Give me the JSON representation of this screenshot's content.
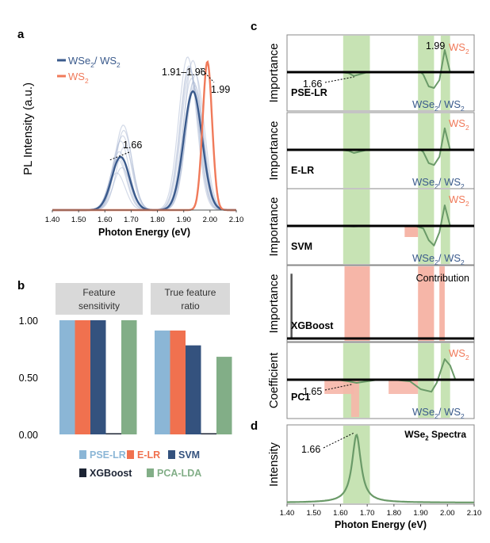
{
  "panel_labels": {
    "a": "a",
    "b": "b",
    "c": "c",
    "d": "d"
  },
  "colors": {
    "wse2_ws2": "#3a5a8c",
    "wse2_ws2_light": "#aebbd6",
    "ws2": "#f07a5a",
    "green_band": "#c7e3b4",
    "red_band": "#f6b6a8",
    "green_line": "#6a9a68",
    "pse_lr": "#8bb6d6",
    "e_lr": "#f0714f",
    "svm": "#34527e",
    "xgboost": "#1c2434",
    "pca_lda": "#82ae87"
  },
  "chart_data": [
    {
      "id": "a",
      "type": "line",
      "xlabel": "Photon Energy (eV)",
      "ylabel": "PL Intensity (a.u.)",
      "xticks": [
        "1.40",
        "1.50",
        "1.60",
        "1.70",
        "1.80",
        "1.90",
        "2.00",
        "2.10"
      ],
      "xlim": [
        1.4,
        2.1
      ],
      "ylim": [
        0,
        1
      ],
      "legend": [
        {
          "parts": [
            "WSe",
            "2",
            "/ WS",
            "2"
          ],
          "color_key": "wse2_ws2"
        },
        {
          "parts": [
            "WS",
            "2"
          ],
          "color_key": "ws2"
        }
      ],
      "series": [
        {
          "name": "WSe2/WS2 mean",
          "color_key": "wse2_ws2",
          "peaks": [
            {
              "x": 1.66,
              "h": 0.34,
              "w": 0.034
            },
            {
              "x": 1.935,
              "h": 0.76,
              "w": 0.035
            }
          ]
        },
        {
          "name": "WS2",
          "color_key": "ws2",
          "peaks": [
            {
              "x": 1.99,
              "h": 0.95,
              "w": 0.018
            }
          ]
        }
      ],
      "annotations": [
        {
          "text": "1.66",
          "x": 1.66
        },
        {
          "text": "1.91–1.96",
          "x": 1.935
        },
        {
          "text": "1.99",
          "x": 1.99
        }
      ]
    },
    {
      "id": "b",
      "type": "bar",
      "groups": [
        {
          "label_lines": [
            "Feature",
            "sensitivity"
          ]
        },
        {
          "label_lines": [
            "True feature",
            "ratio"
          ]
        }
      ],
      "series": [
        {
          "name": "PSE-LR",
          "color_key": "pse_lr",
          "values": [
            1.0,
            0.91
          ]
        },
        {
          "name": "E-LR",
          "color_key": "e_lr",
          "values": [
            1.0,
            0.91
          ]
        },
        {
          "name": "SVM",
          "color_key": "svm",
          "values": [
            1.0,
            0.78
          ]
        },
        {
          "name": "XGBoost",
          "color_key": "xgboost",
          "values": [
            0.0,
            0.0
          ]
        },
        {
          "name": "PCA-LDA",
          "color_key": "pca_lda",
          "values": [
            1.0,
            0.68
          ]
        }
      ],
      "yticks": [
        "1.00",
        "0.50",
        "0.00"
      ],
      "ylim": [
        0,
        1
      ],
      "legend_rows": [
        [
          "PSE-LR",
          "E-LR",
          "SVM"
        ],
        [
          "XGBoost",
          "PCA-LDA"
        ]
      ]
    },
    {
      "id": "c",
      "type": "line",
      "xlim": [
        1.4,
        2.1
      ],
      "subplots": [
        {
          "ylabel": "Importance",
          "model": "PSE-LR",
          "green_bands": [
            [
              1.61,
              1.71
            ],
            [
              1.89,
              1.95
            ],
            [
              1.975,
              2.01
            ]
          ],
          "red_bands": [],
          "curve": [
            [
              1.4,
              0
            ],
            [
              1.6,
              0
            ],
            [
              1.63,
              -0.03
            ],
            [
              1.65,
              -0.12
            ],
            [
              1.68,
              -0.05
            ],
            [
              1.7,
              0
            ],
            [
              1.9,
              0
            ],
            [
              1.91,
              -0.08
            ],
            [
              1.93,
              -0.45
            ],
            [
              1.95,
              -0.5
            ],
            [
              1.97,
              -0.25
            ],
            [
              1.99,
              0.7
            ],
            [
              2.01,
              0
            ],
            [
              2.1,
              0
            ]
          ],
          "labels": {
            "ws2": [
              "WS",
              "2"
            ],
            "mixed": [
              "WSe",
              "2",
              "/ WS",
              "2"
            ],
            "annot_top": "1.99",
            "annot_bottom": "1.66"
          }
        },
        {
          "ylabel": "Importance",
          "model": "E-LR",
          "green_bands": [
            [
              1.61,
              1.71
            ],
            [
              1.89,
              1.95
            ],
            [
              1.975,
              2.01
            ]
          ],
          "red_bands": [],
          "curve": [
            [
              1.4,
              0
            ],
            [
              1.6,
              0
            ],
            [
              1.63,
              -0.03
            ],
            [
              1.65,
              -0.1
            ],
            [
              1.68,
              -0.04
            ],
            [
              1.7,
              0
            ],
            [
              1.9,
              0
            ],
            [
              1.91,
              -0.07
            ],
            [
              1.93,
              -0.42
            ],
            [
              1.95,
              -0.48
            ],
            [
              1.97,
              -0.22
            ],
            [
              1.99,
              0.68
            ],
            [
              2.01,
              0
            ],
            [
              2.1,
              0
            ]
          ],
          "labels": {
            "ws2": [
              "WS",
              "2"
            ],
            "mixed": [
              "WSe",
              "2",
              "/ WS",
              "2"
            ]
          }
        },
        {
          "ylabel": "Importance",
          "model": "SVM",
          "green_bands": [
            [
              1.61,
              1.71
            ],
            [
              1.89,
              1.95
            ],
            [
              1.975,
              2.01
            ]
          ],
          "red_bands": [
            [
              1.84,
              1.89
            ]
          ],
          "curve": [
            [
              1.4,
              0
            ],
            [
              1.6,
              0
            ],
            [
              1.65,
              -0.02
            ],
            [
              1.7,
              0
            ],
            [
              1.88,
              0
            ],
            [
              1.91,
              -0.08
            ],
            [
              1.93,
              -0.45
            ],
            [
              1.95,
              -0.62
            ],
            [
              1.97,
              -0.2
            ],
            [
              1.99,
              0.65
            ],
            [
              2.01,
              0
            ],
            [
              2.1,
              0
            ]
          ],
          "labels": {
            "ws2": [
              "WS",
              "2"
            ],
            "mixed": [
              "WSe",
              "2",
              "/ WS",
              "2"
            ]
          }
        },
        {
          "ylabel": "Importance",
          "model": "XGBoost",
          "green_bands": [],
          "red_bands": [
            [
              1.615,
              1.71
            ],
            [
              1.89,
              1.95
            ],
            [
              1.97,
              1.99
            ]
          ],
          "bars": [
            [
              1.416,
              0.95
            ]
          ],
          "labels": {
            "contribution": "Contribution"
          }
        },
        {
          "ylabel": "Coefficient",
          "model": "PC1",
          "green_bands": [
            [
              1.61,
              1.71
            ],
            [
              1.89,
              1.95
            ],
            [
              1.975,
              2.01
            ]
          ],
          "red_bands": [
            [
              1.64,
              1.67
            ],
            [
              1.78,
              1.89
            ],
            [
              1.54,
              1.65
            ]
          ],
          "curve": [
            [
              1.4,
              0
            ],
            [
              1.5,
              0
            ],
            [
              1.58,
              0.01
            ],
            [
              1.63,
              -0.05
            ],
            [
              1.66,
              -0.1
            ],
            [
              1.7,
              -0.05
            ],
            [
              1.74,
              0
            ],
            [
              1.8,
              0
            ],
            [
              1.86,
              -0.05
            ],
            [
              1.9,
              -0.3
            ],
            [
              1.94,
              -0.38
            ],
            [
              1.96,
              -0.1
            ],
            [
              1.99,
              0.65
            ],
            [
              2.01,
              0.45
            ],
            [
              2.03,
              0
            ],
            [
              2.1,
              0
            ]
          ],
          "labels": {
            "ws2": [
              "WS",
              "2"
            ],
            "mixed": [
              "WSe",
              "2",
              "/ WS",
              "2"
            ],
            "annot_bottom": "1.65"
          }
        }
      ]
    },
    {
      "id": "d",
      "type": "line",
      "xlabel": "Photon Energy (eV)",
      "ylabel": "Intensity",
      "xticks": [
        "1.40",
        "1.50",
        "1.60",
        "1.70",
        "1.80",
        "1.90",
        "2.00",
        "2.10"
      ],
      "xlim": [
        1.4,
        2.1
      ],
      "title_parts": [
        "WSe",
        "2",
        " Spectra"
      ],
      "green_bands": [
        [
          1.61,
          1.71
        ]
      ],
      "peaks": [
        {
          "x": 1.66,
          "h": 0.95,
          "w": 0.02
        }
      ],
      "annotations": [
        {
          "text": "1.66",
          "x": 1.66
        }
      ]
    }
  ]
}
